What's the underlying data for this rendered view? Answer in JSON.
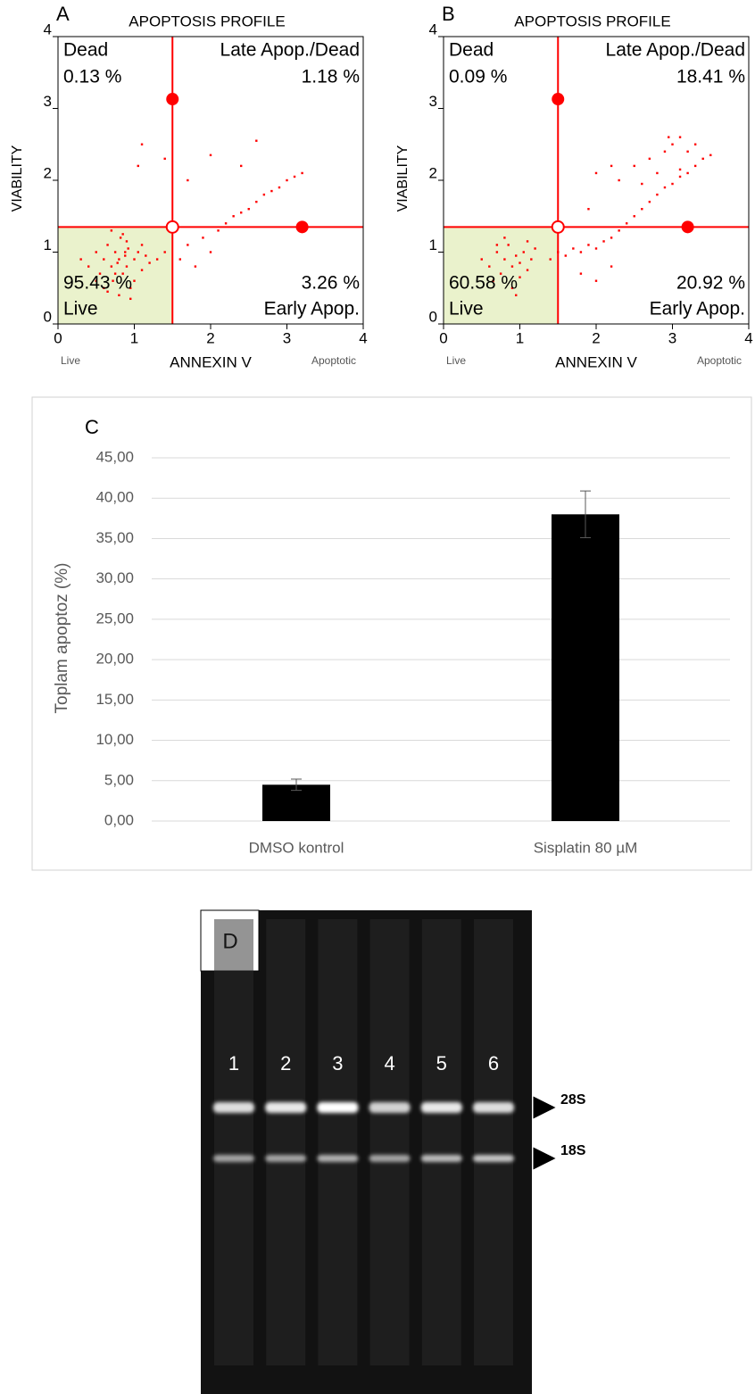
{
  "chart_data": [
    {
      "type": "scatter",
      "panel_label": "A",
      "title": "APOPTOSIS PROFILE",
      "x_label": "ANNEXIN V",
      "y_label": "VIABILITY",
      "x_left_note": "Live",
      "x_right_note": "Apoptotic",
      "xlim": [
        0,
        4
      ],
      "ylim": [
        0,
        4
      ],
      "xticks": [
        0,
        1,
        2,
        3,
        4
      ],
      "yticks": [
        0,
        1,
        2,
        3,
        4
      ],
      "color": "#ff0000",
      "live_region_color": "#eaf2cc",
      "gate": {
        "x": 1.5,
        "y": 1.35
      },
      "handles": {
        "x": [
          1.5,
          3.2
        ],
        "y": [
          3.13,
          1.35
        ]
      },
      "quadrants": {
        "names": [
          "Dead",
          "Late Apop./Dead",
          "Live",
          "Early Apop."
        ],
        "values": [
          0.13,
          1.18,
          95.43,
          3.26
        ],
        "value_labels": [
          "0.13 %",
          "1.18 %",
          "95.43 %",
          "3.26 %"
        ]
      },
      "x": [
        0.3,
        0.4,
        0.5,
        0.55,
        0.6,
        0.65,
        0.7,
        0.72,
        0.75,
        0.78,
        0.8,
        0.82,
        0.85,
        0.88,
        0.9,
        0.92,
        0.95,
        1.0,
        1.05,
        1.1,
        1.15,
        1.2,
        1.3,
        0.6,
        0.7,
        0.8,
        0.9,
        1.0,
        0.5,
        0.65,
        0.85,
        0.95,
        1.1,
        0.75,
        0.88,
        1.4,
        1.6,
        1.7,
        1.8,
        1.9,
        2.0,
        2.1,
        2.2,
        2.3,
        2.4,
        2.5,
        2.6,
        2.7,
        2.8,
        2.9,
        3.0,
        3.1,
        3.2,
        1.1,
        1.05,
        1.4,
        2.6,
        2.4,
        2.0,
        1.7
      ],
      "y": [
        0.9,
        0.8,
        1.0,
        0.7,
        0.9,
        1.1,
        0.8,
        0.6,
        1.0,
        0.85,
        0.9,
        1.2,
        0.7,
        0.95,
        0.8,
        1.05,
        0.5,
        0.9,
        1.0,
        0.75,
        0.95,
        0.85,
        0.9,
        0.5,
        1.3,
        0.4,
        1.15,
        0.6,
        0.6,
        0.45,
        1.25,
        0.35,
        1.1,
        0.7,
        1.0,
        1.0,
        0.9,
        1.1,
        0.8,
        1.2,
        1.0,
        1.3,
        1.4,
        1.5,
        1.55,
        1.6,
        1.7,
        1.8,
        1.85,
        1.9,
        2.0,
        2.05,
        2.1,
        2.5,
        2.2,
        2.3,
        2.55,
        2.2,
        2.35,
        2.0
      ]
    },
    {
      "type": "scatter",
      "panel_label": "B",
      "title": "APOPTOSIS PROFILE",
      "x_label": "ANNEXIN V",
      "y_label": "VIABILITY",
      "x_left_note": "Live",
      "x_right_note": "Apoptotic",
      "xlim": [
        0,
        4
      ],
      "ylim": [
        0,
        4
      ],
      "xticks": [
        0,
        1,
        2,
        3,
        4
      ],
      "yticks": [
        0,
        1,
        2,
        3,
        4
      ],
      "color": "#ff0000",
      "live_region_color": "#eaf2cc",
      "gate": {
        "x": 1.5,
        "y": 1.35
      },
      "handles": {
        "x": [
          1.5,
          3.2
        ],
        "y": [
          3.13,
          1.35
        ]
      },
      "quadrants": {
        "names": [
          "Dead",
          "Late Apop./Dead",
          "Live",
          "Early Apop."
        ],
        "values": [
          0.09,
          18.41,
          60.58,
          20.92
        ],
        "value_labels": [
          "0.09 %",
          "18.41 %",
          "60.58 %",
          "20.92 %"
        ]
      },
      "x": [
        0.5,
        0.6,
        0.7,
        0.75,
        0.8,
        0.85,
        0.9,
        0.95,
        1.0,
        1.05,
        1.1,
        1.15,
        1.2,
        0.65,
        0.8,
        0.9,
        1.0,
        1.1,
        0.7,
        0.95,
        1.4,
        1.5,
        1.6,
        1.7,
        1.8,
        1.9,
        2.0,
        2.1,
        2.2,
        2.3,
        2.4,
        2.5,
        2.6,
        2.7,
        2.8,
        2.9,
        3.0,
        3.1,
        3.2,
        3.3,
        3.4,
        3.5,
        1.8,
        2.0,
        2.2,
        2.5,
        2.7,
        2.9,
        3.0,
        3.1,
        3.2,
        2.8,
        2.6,
        3.3,
        2.3,
        2.0,
        1.9,
        2.2,
        3.1,
        2.95
      ],
      "y": [
        0.9,
        0.8,
        1.0,
        0.7,
        0.9,
        1.1,
        0.8,
        0.95,
        0.85,
        1.0,
        0.75,
        0.9,
        1.05,
        0.6,
        1.2,
        0.5,
        0.65,
        1.15,
        1.1,
        0.4,
        0.9,
        1.0,
        0.95,
        1.05,
        1.0,
        1.1,
        1.05,
        1.15,
        1.2,
        1.3,
        1.4,
        1.5,
        1.6,
        1.7,
        1.8,
        1.9,
        1.95,
        2.05,
        2.1,
        2.2,
        2.3,
        2.35,
        0.7,
        0.6,
        0.8,
        2.2,
        2.3,
        2.4,
        2.5,
        2.6,
        2.4,
        2.1,
        1.95,
        2.5,
        2.0,
        2.1,
        1.6,
        2.2,
        2.15,
        2.6
      ]
    },
    {
      "type": "bar",
      "panel_label": "C",
      "y_label": "Toplam apoptoz (%)",
      "categories": [
        "DMSO kontrol",
        "Sisplatin 80 µM"
      ],
      "values": [
        4.5,
        38.0
      ],
      "errors": [
        0.7,
        2.9
      ],
      "color": "#000000",
      "ylim": [
        0,
        45
      ],
      "grid": true,
      "yticks": [
        {
          "value": 0,
          "label": "0,00"
        },
        {
          "value": 5,
          "label": "5,00"
        },
        {
          "value": 10,
          "label": "10,00"
        },
        {
          "value": 15,
          "label": "15,00"
        },
        {
          "value": 20,
          "label": "20,00"
        },
        {
          "value": 25,
          "label": "25,00"
        },
        {
          "value": 30,
          "label": "30,00"
        },
        {
          "value": 35,
          "label": "35,00"
        },
        {
          "value": 40,
          "label": "40,00"
        },
        {
          "value": 45,
          "label": "45,00"
        }
      ]
    }
  ],
  "gel": {
    "panel_label": "D",
    "lanes": [
      "1",
      "2",
      "3",
      "4",
      "5",
      "6"
    ],
    "bands": [
      "28S",
      "18S"
    ]
  }
}
